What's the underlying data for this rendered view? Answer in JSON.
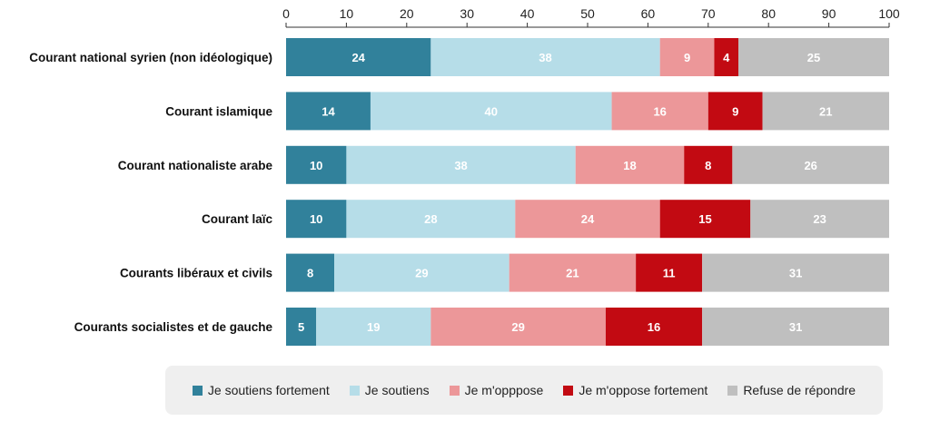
{
  "chart_data": {
    "type": "bar",
    "orientation": "horizontal",
    "stacked": true,
    "categories": [
      "Courant national syrien (non idéologique)",
      "Courant islamique",
      "Courant nationaliste arabe",
      "Courant laïc",
      "Courants libéraux et civils",
      "Courants socialistes et de gauche"
    ],
    "series": [
      {
        "name": "Je soutiens fortement",
        "color": "#31819b",
        "label_color": "#ffffff",
        "values": [
          24,
          14,
          10,
          10,
          8,
          5
        ]
      },
      {
        "name": "Je soutiens",
        "color": "#b6dde8",
        "label_color": "#ffffff",
        "values": [
          38,
          40,
          38,
          28,
          29,
          19
        ]
      },
      {
        "name": "Je m'opppose",
        "color": "#ec9799",
        "label_color": "#ffffff",
        "values": [
          9,
          16,
          18,
          24,
          21,
          29
        ]
      },
      {
        "name": "Je m'oppose fortement",
        "color": "#c20a12",
        "label_color": "#ffffff",
        "values": [
          4,
          9,
          8,
          15,
          11,
          16
        ]
      },
      {
        "name": "Refuse de répondre",
        "color": "#bfbfbf",
        "label_color": "#ffffff",
        "values": [
          25,
          21,
          26,
          23,
          31,
          31
        ]
      }
    ],
    "xlim": [
      0,
      100
    ],
    "xticks": [
      0,
      10,
      20,
      30,
      40,
      50,
      60,
      70,
      80,
      90,
      100
    ],
    "axis_position": "top",
    "grid": false,
    "legend_position": "bottom"
  }
}
